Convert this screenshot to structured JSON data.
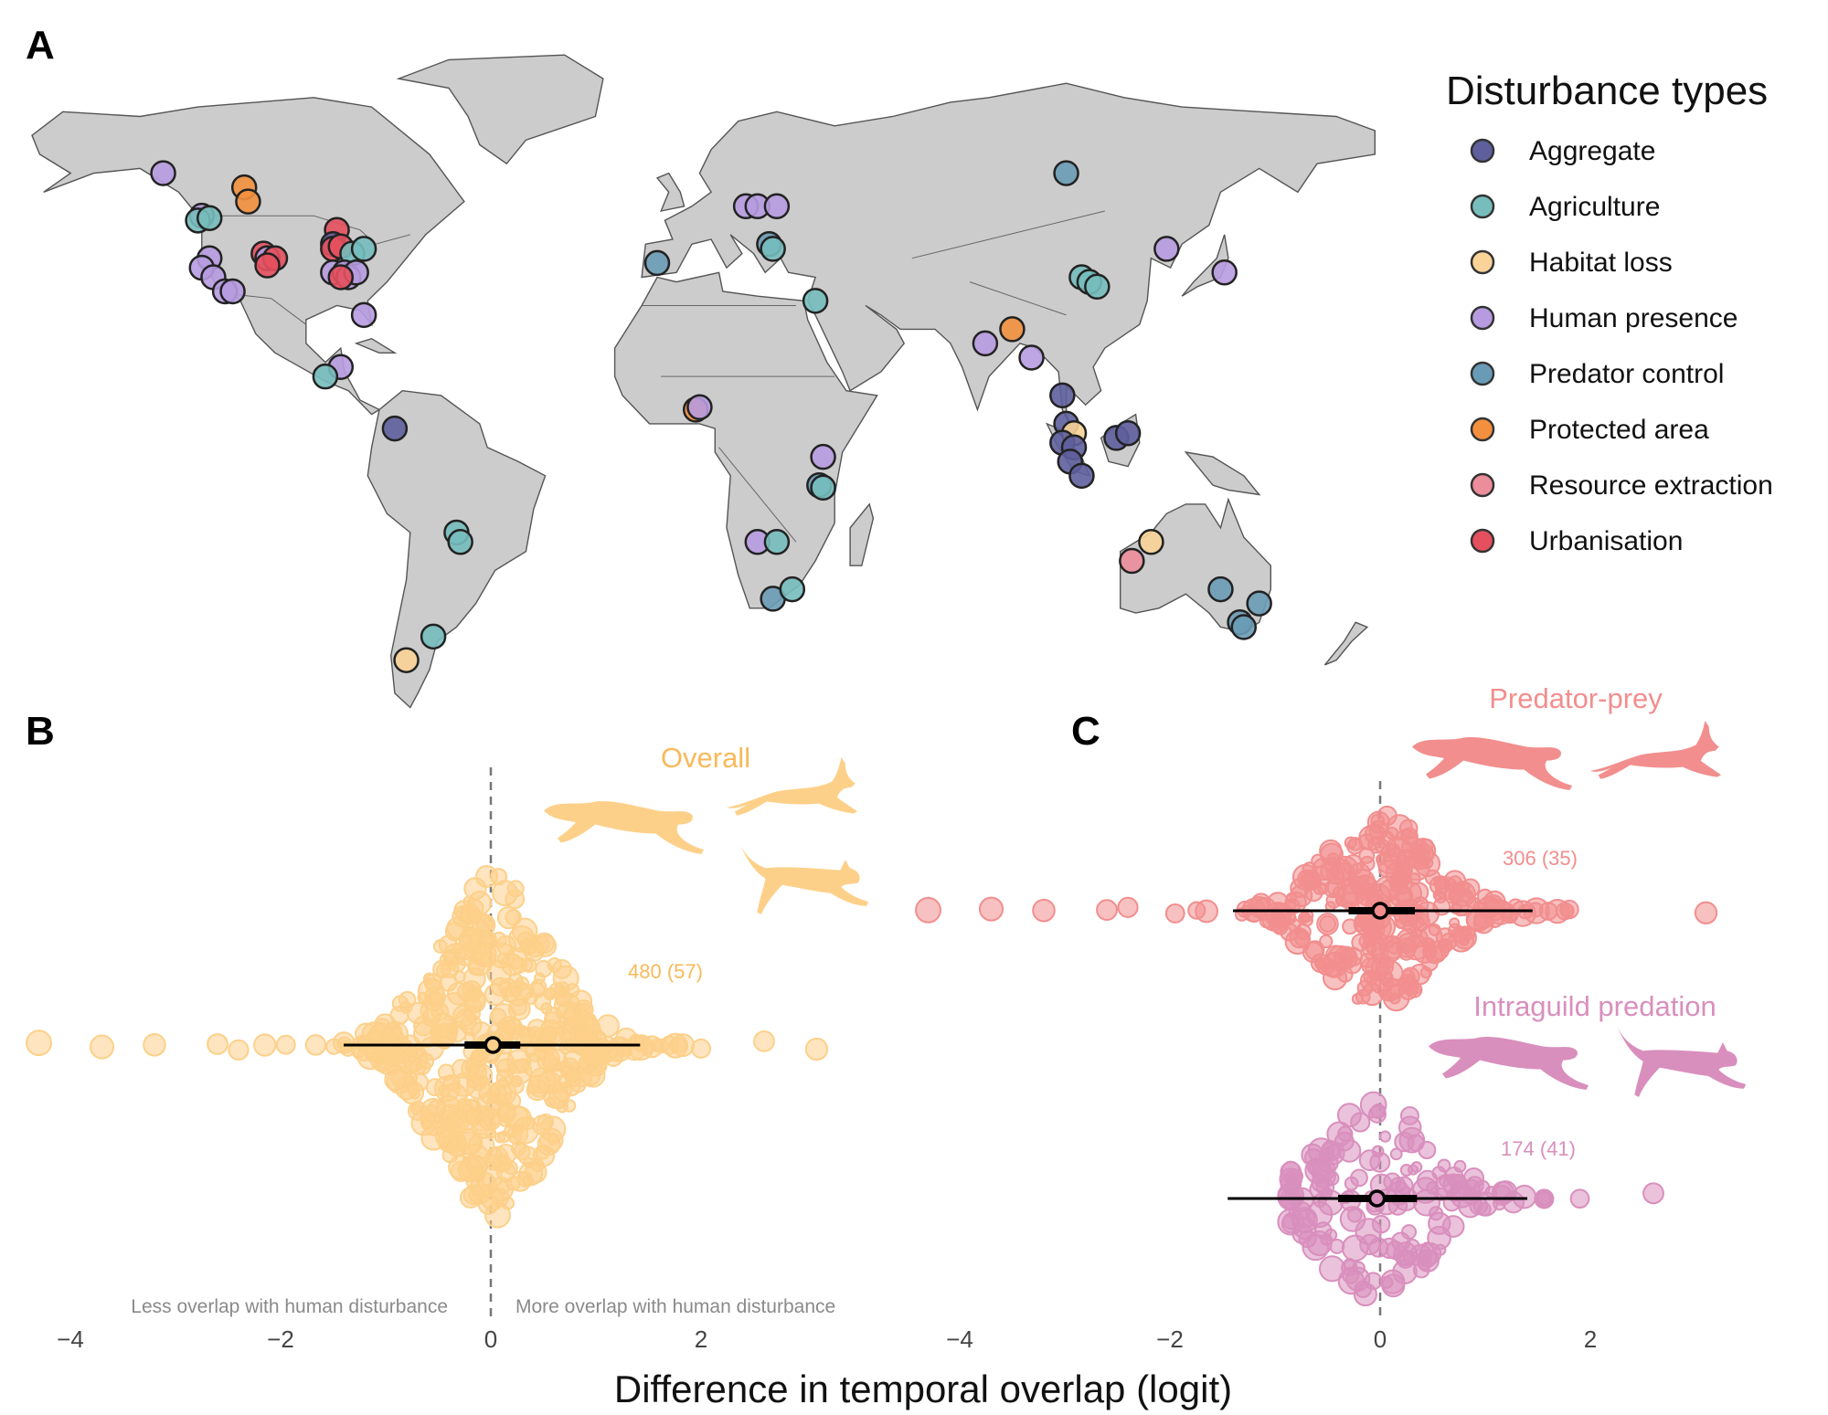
{
  "figure": {
    "panels": {
      "a": "A",
      "b": "B",
      "c": "C"
    }
  },
  "legend": {
    "title": "Disturbance types",
    "items": [
      {
        "label": "Aggregate",
        "color": "#5f5f9e"
      },
      {
        "label": "Agriculture",
        "color": "#76bdbc"
      },
      {
        "label": "Habitat loss",
        "color": "#f9d397"
      },
      {
        "label": "Human presence",
        "color": "#b79be0"
      },
      {
        "label": "Predator control",
        "color": "#6a9bb6"
      },
      {
        "label": "Protected area",
        "color": "#f2903e"
      },
      {
        "label": "Resource extraction",
        "color": "#ec8d9c"
      },
      {
        "label": "Urbanisation",
        "color": "#e5505e"
      }
    ]
  },
  "map_sites": [
    {
      "lon": -134,
      "lat": 58,
      "type": "Human presence"
    },
    {
      "lon": -113,
      "lat": 55,
      "type": "Protected area"
    },
    {
      "lon": -112,
      "lat": 52,
      "type": "Protected area"
    },
    {
      "lon": -124,
      "lat": 49,
      "type": "Human presence"
    },
    {
      "lon": -125,
      "lat": 48,
      "type": "Agriculture"
    },
    {
      "lon": -122,
      "lat": 48.5,
      "type": "Agriculture"
    },
    {
      "lon": -122,
      "lat": 40,
      "type": "Human presence"
    },
    {
      "lon": -124,
      "lat": 38,
      "type": "Human presence"
    },
    {
      "lon": -121,
      "lat": 36,
      "type": "Human presence"
    },
    {
      "lon": -118,
      "lat": 33,
      "type": "Human presence"
    },
    {
      "lon": -116,
      "lat": 33,
      "type": "Human presence"
    },
    {
      "lon": -108,
      "lat": 41,
      "type": "Urbanisation"
    },
    {
      "lon": -107,
      "lat": 40,
      "type": "Human presence"
    },
    {
      "lon": -105,
      "lat": 40,
      "type": "Urbanisation"
    },
    {
      "lon": -107,
      "lat": 38.5,
      "type": "Urbanisation"
    },
    {
      "lon": -89,
      "lat": 46,
      "type": "Urbanisation"
    },
    {
      "lon": -90,
      "lat": 43,
      "type": "Aggregate"
    },
    {
      "lon": -90,
      "lat": 42,
      "type": "Urbanisation"
    },
    {
      "lon": -88,
      "lat": 42.5,
      "type": "Urbanisation"
    },
    {
      "lon": -85,
      "lat": 41,
      "type": "Agriculture"
    },
    {
      "lon": -82,
      "lat": 42,
      "type": "Agriculture"
    },
    {
      "lon": -90,
      "lat": 37,
      "type": "Human presence"
    },
    {
      "lon": -87,
      "lat": 37,
      "type": "Human presence"
    },
    {
      "lon": -86,
      "lat": 36,
      "type": "Human presence"
    },
    {
      "lon": -84,
      "lat": 37,
      "type": "Human presence"
    },
    {
      "lon": -88,
      "lat": 36,
      "type": "Urbanisation"
    },
    {
      "lon": -82,
      "lat": 28,
      "type": "Human presence"
    },
    {
      "lon": -88,
      "lat": 17,
      "type": "Human presence"
    },
    {
      "lon": -92,
      "lat": 15,
      "type": "Agriculture"
    },
    {
      "lon": -74,
      "lat": 4,
      "type": "Aggregate"
    },
    {
      "lon": -58,
      "lat": -18,
      "type": "Agriculture"
    },
    {
      "lon": -57,
      "lat": -20,
      "type": "Agriculture"
    },
    {
      "lon": -64,
      "lat": -40,
      "type": "Agriculture"
    },
    {
      "lon": -71,
      "lat": -45,
      "type": "Habitat loss"
    },
    {
      "lon": -6,
      "lat": 39,
      "type": "Predator control"
    },
    {
      "lon": 17,
      "lat": 51,
      "type": "Human presence"
    },
    {
      "lon": 20,
      "lat": 51,
      "type": "Human presence"
    },
    {
      "lon": 25,
      "lat": 51,
      "type": "Human presence"
    },
    {
      "lon": 23,
      "lat": 43,
      "type": "Predator control"
    },
    {
      "lon": 24,
      "lat": 42,
      "type": "Agriculture"
    },
    {
      "lon": 35,
      "lat": 31,
      "type": "Agriculture"
    },
    {
      "lon": 4,
      "lat": 8,
      "type": "Protected area"
    },
    {
      "lon": 5,
      "lat": 8.5,
      "type": "Human presence"
    },
    {
      "lon": 37,
      "lat": -2,
      "type": "Human presence"
    },
    {
      "lon": 36,
      "lat": -8,
      "type": "Predator control"
    },
    {
      "lon": 37,
      "lat": -8.5,
      "type": "Agriculture"
    },
    {
      "lon": 20,
      "lat": -20,
      "type": "Human presence"
    },
    {
      "lon": 25,
      "lat": -20,
      "type": "Agriculture"
    },
    {
      "lon": 24,
      "lat": -32,
      "type": "Predator control"
    },
    {
      "lon": 29,
      "lat": -30,
      "type": "Agriculture"
    },
    {
      "lon": 100,
      "lat": 58,
      "type": "Predator control"
    },
    {
      "lon": 104,
      "lat": 36,
      "type": "Agriculture"
    },
    {
      "lon": 106,
      "lat": 35,
      "type": "Agriculture"
    },
    {
      "lon": 108,
      "lat": 34,
      "type": "Agriculture"
    },
    {
      "lon": 126,
      "lat": 42,
      "type": "Human presence"
    },
    {
      "lon": 141,
      "lat": 37,
      "type": "Human presence"
    },
    {
      "lon": 86,
      "lat": 25,
      "type": "Protected area"
    },
    {
      "lon": 79,
      "lat": 22,
      "type": "Human presence"
    },
    {
      "lon": 91,
      "lat": 19,
      "type": "Human presence"
    },
    {
      "lon": 99,
      "lat": 11,
      "type": "Aggregate"
    },
    {
      "lon": 100,
      "lat": 5,
      "type": "Aggregate"
    },
    {
      "lon": 102,
      "lat": 3,
      "type": "Habitat loss"
    },
    {
      "lon": 99,
      "lat": 1,
      "type": "Aggregate"
    },
    {
      "lon": 102,
      "lat": 0,
      "type": "Aggregate"
    },
    {
      "lon": 101,
      "lat": -3,
      "type": "Aggregate"
    },
    {
      "lon": 104,
      "lat": -6,
      "type": "Aggregate"
    },
    {
      "lon": 113,
      "lat": 2,
      "type": "Aggregate"
    },
    {
      "lon": 116,
      "lat": 3,
      "type": "Aggregate"
    },
    {
      "lon": 122,
      "lat": -20,
      "type": "Habitat loss"
    },
    {
      "lon": 117,
      "lat": -24,
      "type": "Resource extraction"
    },
    {
      "lon": 140,
      "lat": -30,
      "type": "Predator control"
    },
    {
      "lon": 150,
      "lat": -33,
      "type": "Predator control"
    },
    {
      "lon": 145,
      "lat": -37,
      "type": "Predator control"
    },
    {
      "lon": 146,
      "lat": -38,
      "type": "Predator control"
    }
  ],
  "chart_data": [
    {
      "type": "scatter",
      "subtype": "beeswarm",
      "panel": "B",
      "title": "Overall",
      "color": "#fdd08a",
      "count_label": "480 (57)",
      "n_effects": 480,
      "n_studies": 57,
      "xlabel": "Difference in temporal overlap (logit)",
      "xlim": [
        -4.2,
        3.8
      ],
      "xticks": [
        -4,
        -2,
        0,
        2
      ],
      "xtick_labels": [
        "−4",
        "−2",
        "0",
        "2"
      ],
      "reference_line": 0,
      "direction_labels": {
        "left": "Less overlap with human disturbance",
        "right": "More overlap with human disturbance"
      },
      "summary": {
        "mean": 0.02,
        "ci50": [
          -0.25,
          0.28
        ],
        "ci95": [
          -1.4,
          1.42
        ]
      },
      "range": [
        -4.3,
        3.1
      ],
      "outliers": [
        -4.3,
        -3.7,
        -3.2,
        -2.6,
        -2.4,
        -1.95,
        1.7,
        2.0,
        2.6,
        3.1
      ]
    },
    {
      "type": "scatter",
      "subtype": "beeswarm",
      "panel": "C",
      "title": "Predator-prey",
      "color": "#f28e8e",
      "count_label": "306 (35)",
      "n_effects": 306,
      "n_studies": 35,
      "xlim": [
        -4.2,
        3.8
      ],
      "xticks": [
        -4,
        -2,
        0,
        2
      ],
      "xtick_labels": [
        "−4",
        "−2",
        "0",
        "2"
      ],
      "reference_line": 0,
      "summary": {
        "mean": 0.0,
        "ci50": [
          -0.3,
          0.33
        ],
        "ci95": [
          -1.4,
          1.45
        ]
      },
      "range": [
        -4.3,
        3.1
      ],
      "outliers": [
        -4.3,
        -3.7,
        -3.2,
        -2.6,
        -2.4,
        -1.95,
        1.6,
        1.8,
        3.1
      ]
    },
    {
      "type": "scatter",
      "subtype": "beeswarm",
      "panel": "C",
      "title": "Intraguild predation",
      "color": "#d98fbd",
      "count_label": "174 (41)",
      "n_effects": 174,
      "n_studies": 41,
      "xlim": [
        -4.2,
        3.8
      ],
      "xticks": [
        -4,
        -2,
        0,
        2
      ],
      "xtick_labels": [
        "−4",
        "−2",
        "0",
        "2"
      ],
      "reference_line": 0,
      "summary": {
        "mean": -0.03,
        "ci50": [
          -0.4,
          0.35
        ],
        "ci95": [
          -1.45,
          1.4
        ]
      },
      "range": [
        -1.7,
        2.6
      ],
      "outliers": [
        1.9,
        2.6
      ]
    }
  ]
}
